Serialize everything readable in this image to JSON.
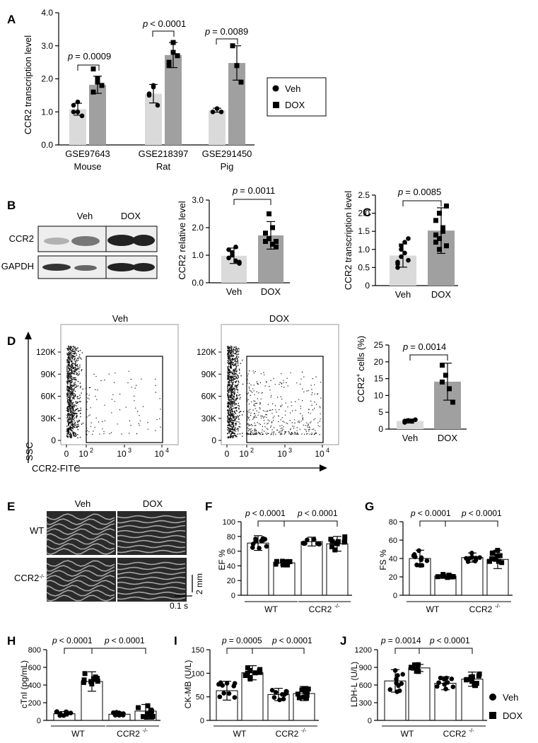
{
  "panels": {
    "A": {
      "label": "A",
      "ylabel": "CCR2 transcription level",
      "yticks": [
        "0.0",
        "1.0",
        "2.0",
        "3.0",
        "4.0"
      ],
      "groups": [
        {
          "id": "GSE97643",
          "species": "Mouse",
          "p": "= 0.0009"
        },
        {
          "id": "GSE218397",
          "species": "Rat",
          "p": "< 0.0001"
        },
        {
          "id": "GSE291450",
          "species": "Pig",
          "p": "= 0.0089"
        }
      ],
      "legend": [
        {
          "marker": "circle",
          "label": "Veh"
        },
        {
          "marker": "square",
          "label": "DOX"
        }
      ]
    },
    "B": {
      "label": "B",
      "blot_header": [
        "Veh",
        "DOX"
      ],
      "blot_rows": [
        "CCR2",
        "GAPDH"
      ],
      "ylabel": "CCR2 relative level",
      "yticks": [
        "0.0",
        "1.0",
        "2.0",
        "3.0"
      ],
      "categories": [
        "Veh",
        "DOX"
      ],
      "p": "= 0.0011"
    },
    "C": {
      "label": "C",
      "ylabel": "CCR2 transcription level",
      "yticks": [
        "0",
        "0.5",
        "1.0",
        "1.5",
        "2.0",
        "2.5"
      ],
      "categories": [
        "Veh",
        "DOX"
      ],
      "p": "= 0.0085"
    },
    "D": {
      "label": "D",
      "flow_titles": [
        "Veh",
        "DOX"
      ],
      "flow_yticks": [
        "0",
        "30K",
        "60K",
        "90K",
        "120K"
      ],
      "flow_xticks": [
        "0",
        "10",
        "10",
        "10"
      ],
      "flow_xtick_exps": [
        "",
        "2",
        "3",
        "4"
      ],
      "flow_ylabel": "SSC",
      "flow_xlabel": "CCR2-FITC",
      "bar_ylabel_main": "CCR2",
      "bar_ylabel_sup": "+",
      "bar_ylabel_tail": " cells (%)",
      "yticks": [
        "0",
        "5",
        "10",
        "15",
        "20",
        "25"
      ],
      "categories": [
        "Veh",
        "DOX"
      ],
      "p": "= 0.0014"
    },
    "E": {
      "label": "E",
      "col_titles": [
        "Veh",
        "DOX"
      ],
      "row_labels": [
        "WT",
        "CCR2"
      ],
      "row_sup": "-/-",
      "scale_v": "2 mm",
      "scale_h": "0.1 s"
    },
    "F": {
      "label": "F",
      "ylabel": "EF %",
      "yticks": [
        "0",
        "20",
        "40",
        "60",
        "80",
        "100"
      ],
      "p1": "< 0.0001",
      "p2": "< 0.0001"
    },
    "G": {
      "label": "G",
      "ylabel": "FS %",
      "yticks": [
        "0",
        "20",
        "40",
        "60",
        "80"
      ],
      "p1": "< 0.0001",
      "p2": "< 0.0001"
    },
    "H": {
      "label": "H",
      "ylabel": "cTnI (pg/mL)",
      "yticks": [
        "0",
        "200",
        "400",
        "600",
        "800"
      ],
      "p1": "< 0.0001",
      "p2": "< 0.0001"
    },
    "I": {
      "label": "I",
      "ylabel": "CK-MB (U/L)",
      "yticks": [
        "0",
        "50",
        "100",
        "150"
      ],
      "p1": "= 0.0005",
      "p2": "< 0.0001"
    },
    "J": {
      "label": "J",
      "ylabel": "LDH-L (U/L)",
      "yticks": [
        "0",
        "300",
        "600",
        "900",
        "1200"
      ],
      "p1": "= 0.0014",
      "p2": "< 0.0001"
    }
  },
  "genotypes": {
    "wt": "WT",
    "ko": "CCR2",
    "ko_sup": "-/-"
  },
  "legend_bottom": [
    {
      "marker": "circle",
      "label": "Veh"
    },
    {
      "marker": "square",
      "label": "DOX"
    }
  ],
  "p_letter": "p",
  "colors": {
    "veh_bar": "#dadada",
    "dox_bar": "#a0a0a0",
    "axis": "#000000",
    "hollow_bar": "#ffffff"
  },
  "chart_data": [
    {
      "type": "bar",
      "panel": "A",
      "categories": [
        "GSE97643 Mouse",
        "GSE218397 Rat",
        "GSE291450 Pig"
      ],
      "series": [
        {
          "name": "Veh",
          "values": [
            1.08,
            1.55,
            1.05
          ],
          "sd": [
            0.18,
            0.28,
            0.06
          ],
          "points": [
            [
              1.0,
              1.3,
              0.88,
              1.2,
              1.0
            ],
            [
              1.5,
              1.75,
              1.2,
              1.55,
              1.8
            ],
            [
              1.0,
              1.1,
              1.0
            ]
          ]
        },
        {
          "name": "DOX",
          "values": [
            1.82,
            2.72,
            2.48
          ],
          "sd": [
            0.26,
            0.38,
            0.52
          ],
          "points": [
            [
              1.6,
              2.0,
              1.8,
              2.3,
              1.9
            ],
            [
              2.4,
              3.1,
              2.7,
              2.5,
              2.8
            ],
            [
              3.0,
              2.4,
              1.9
            ]
          ]
        }
      ],
      "ylim": [
        0,
        4
      ],
      "ylabel": "CCR2 transcription level"
    },
    {
      "type": "bar",
      "panel": "B",
      "categories": [
        "Veh",
        "DOX"
      ],
      "values": [
        0.98,
        1.72
      ],
      "sd": [
        0.28,
        0.5
      ],
      "points": [
        [
          0.9,
          1.1,
          0.8,
          0.7,
          1.2,
          1.0,
          1.3,
          0.75
        ],
        [
          1.5,
          2.5,
          1.4,
          1.3,
          1.8,
          1.6,
          2.0,
          1.5
        ]
      ],
      "ylim": [
        0,
        3
      ],
      "ylabel": "CCR2 relative level"
    },
    {
      "type": "bar",
      "panel": "C",
      "categories": [
        "Veh",
        "DOX"
      ],
      "values": [
        0.83,
        1.52
      ],
      "sd": [
        0.32,
        0.63
      ],
      "points": [
        [
          0.6,
          1.0,
          0.9,
          1.3,
          0.5,
          0.8,
          1.2,
          0.7,
          0.65,
          1.1
        ],
        [
          1.2,
          2.0,
          1.5,
          1.1,
          1.8,
          1.0,
          1.6,
          2.2,
          1.4,
          1.3
        ]
      ],
      "ylim": [
        0,
        2.5
      ],
      "ylabel": "CCR2 transcription level"
    },
    {
      "type": "bar",
      "panel": "D",
      "categories": [
        "Veh",
        "DOX"
      ],
      "values": [
        2.4,
        14.1
      ],
      "sd": [
        0.6,
        5.5
      ],
      "points": [
        [
          2.0,
          2.6,
          2.3,
          2.8,
          2.4
        ],
        [
          19.0,
          16.0,
          12.0,
          8.0,
          14.0
        ]
      ],
      "ylim": [
        0,
        25
      ],
      "ylabel": "CCR2+ cells (%)"
    },
    {
      "type": "bar",
      "panel": "F",
      "categories": [
        "WT Veh",
        "WT DOX",
        "CCR2-/- Veh",
        "CCR2-/- DOX"
      ],
      "values": [
        71,
        44,
        73,
        70
      ],
      "sd": [
        10,
        3,
        6,
        10
      ],
      "ylim": [
        0,
        100
      ],
      "ylabel": "EF %"
    },
    {
      "type": "bar",
      "panel": "G",
      "categories": [
        "WT Veh",
        "WT DOX",
        "CCR2-/- Veh",
        "CCR2-/- DOX"
      ],
      "values": [
        40,
        21,
        41,
        39
      ],
      "sd": [
        9,
        2,
        5,
        10
      ],
      "ylim": [
        0,
        80
      ],
      "ylabel": "FS %"
    },
    {
      "type": "bar",
      "panel": "H",
      "categories": [
        "WT Veh",
        "WT DOX",
        "CCR2-/- Veh",
        "CCR2-/- DOX"
      ],
      "values": [
        75,
        440,
        70,
        105
      ],
      "sd": [
        25,
        110,
        25,
        75
      ],
      "ylim": [
        0,
        800
      ],
      "ylabel": "cTnI (pg/mL)"
    },
    {
      "type": "bar",
      "panel": "I",
      "categories": [
        "WT Veh",
        "WT DOX",
        "CCR2-/- Veh",
        "CCR2-/- DOX"
      ],
      "values": [
        63,
        101,
        55,
        57
      ],
      "sd": [
        20,
        15,
        13,
        15
      ],
      "ylim": [
        0,
        150
      ],
      "ylabel": "CK-MB (U/L)"
    },
    {
      "type": "bar",
      "panel": "J",
      "categories": [
        "WT Veh",
        "WT DOX",
        "CCR2-/- Veh",
        "CCR2-/- DOX"
      ],
      "values": [
        670,
        890,
        630,
        700
      ],
      "sd": [
        190,
        60,
        110,
        120
      ],
      "ylim": [
        0,
        1200
      ],
      "ylabel": "LDH-L (U/L)"
    }
  ]
}
